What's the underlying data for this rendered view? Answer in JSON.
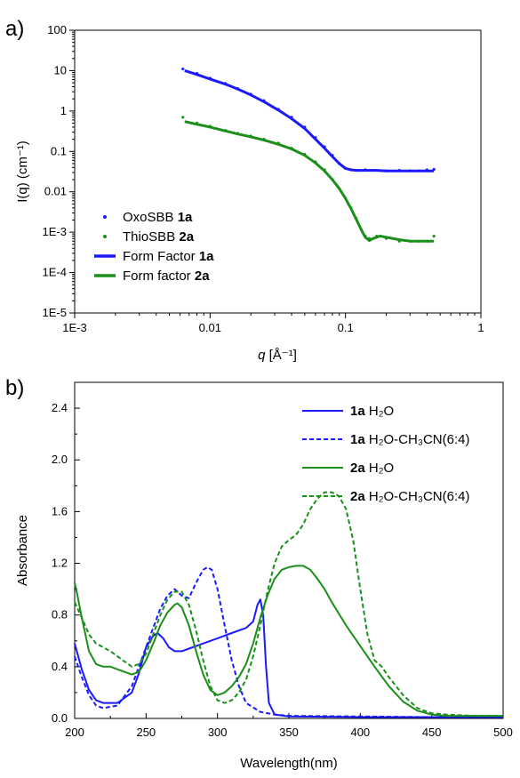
{
  "chart_data": [
    {
      "panel_label": "a)",
      "type": "scatter",
      "x_scale": "log",
      "y_scale": "log",
      "xlim": [
        0.001,
        1
      ],
      "ylim": [
        1e-05,
        100
      ],
      "xlabel_italic": "q",
      "xlabel_rest": " [Å⁻¹]",
      "ylabel": "I(q) (cm⁻¹)",
      "x_ticks": [
        0.001,
        0.01,
        0.1,
        1
      ],
      "x_tick_labels": [
        "1E-3",
        "0.01",
        "0.1",
        "1"
      ],
      "y_ticks": [
        1e-05,
        0.0001,
        0.001,
        0.01,
        0.1,
        1,
        10,
        100
      ],
      "y_tick_labels": [
        "1E-5",
        "1E-4",
        "1E-3",
        "0.01",
        "0.1",
        "1",
        "10",
        "100"
      ],
      "legend_position": "bottom-left",
      "series": [
        {
          "name": "OxoSBB ",
          "name_bold": "1a",
          "kind": "points",
          "color": "#1a1aff",
          "x": [
            0.0063,
            0.008,
            0.01,
            0.013,
            0.016,
            0.02,
            0.025,
            0.032,
            0.04,
            0.05,
            0.06,
            0.07,
            0.08,
            0.09,
            0.1,
            0.11,
            0.12,
            0.14,
            0.17,
            0.2,
            0.25,
            0.3,
            0.35,
            0.4,
            0.45
          ],
          "y": [
            11,
            8.5,
            6.5,
            4.8,
            3.6,
            2.6,
            1.8,
            1.1,
            0.7,
            0.4,
            0.22,
            0.13,
            0.08,
            0.05,
            0.038,
            0.035,
            0.034,
            0.035,
            0.034,
            0.033,
            0.034,
            0.033,
            0.033,
            0.035,
            0.036
          ]
        },
        {
          "name": "ThioSBB ",
          "name_bold": "2a",
          "kind": "points",
          "color": "#1a8f1a",
          "x": [
            0.0063,
            0.008,
            0.01,
            0.013,
            0.016,
            0.02,
            0.025,
            0.032,
            0.04,
            0.05,
            0.06,
            0.07,
            0.08,
            0.09,
            0.1,
            0.11,
            0.12,
            0.13,
            0.14,
            0.15,
            0.17,
            0.2,
            0.25,
            0.3,
            0.35,
            0.4,
            0.45
          ],
          "y": [
            0.7,
            0.5,
            0.42,
            0.33,
            0.28,
            0.24,
            0.2,
            0.16,
            0.12,
            0.085,
            0.055,
            0.035,
            0.02,
            0.012,
            0.007,
            0.004,
            0.0022,
            0.0012,
            0.0008,
            0.0007,
            0.0008,
            0.0007,
            0.0006,
            0.0006,
            0.0006,
            0.0006,
            0.0008
          ]
        },
        {
          "name": "Form Factor ",
          "name_bold": "1a",
          "kind": "line",
          "color": "#1a1aff",
          "x": [
            0.0065,
            0.008,
            0.01,
            0.013,
            0.016,
            0.02,
            0.025,
            0.032,
            0.04,
            0.05,
            0.06,
            0.07,
            0.08,
            0.09,
            0.1,
            0.11,
            0.12,
            0.14,
            0.17,
            0.2,
            0.25,
            0.3,
            0.35,
            0.4,
            0.45
          ],
          "y": [
            10,
            8,
            6.2,
            4.6,
            3.5,
            2.5,
            1.7,
            1.05,
            0.65,
            0.37,
            0.2,
            0.12,
            0.075,
            0.05,
            0.038,
            0.035,
            0.034,
            0.034,
            0.034,
            0.033,
            0.033,
            0.033,
            0.033,
            0.033,
            0.033
          ]
        },
        {
          "name": "Form factor ",
          "name_bold": "2a",
          "kind": "line",
          "color": "#1a8f1a",
          "x": [
            0.0065,
            0.008,
            0.01,
            0.013,
            0.016,
            0.02,
            0.025,
            0.032,
            0.04,
            0.05,
            0.06,
            0.07,
            0.08,
            0.09,
            0.1,
            0.11,
            0.12,
            0.13,
            0.14,
            0.15,
            0.16,
            0.18,
            0.2,
            0.25,
            0.3,
            0.35,
            0.4,
            0.45
          ],
          "y": [
            0.55,
            0.47,
            0.4,
            0.32,
            0.27,
            0.23,
            0.19,
            0.15,
            0.115,
            0.08,
            0.052,
            0.033,
            0.02,
            0.012,
            0.0068,
            0.0038,
            0.0021,
            0.0012,
            0.00075,
            0.00062,
            0.0007,
            0.0008,
            0.00075,
            0.00065,
            0.0006,
            0.0006,
            0.0006,
            0.0006
          ]
        }
      ]
    },
    {
      "panel_label": "b)",
      "type": "line",
      "xlim": [
        200,
        500
      ],
      "ylim": [
        0,
        2.6
      ],
      "xlabel": "Wavelength(nm)",
      "ylabel": "Absorbance",
      "x_ticks": [
        200,
        250,
        300,
        350,
        400,
        450,
        500
      ],
      "x_tick_labels": [
        "200",
        "250",
        "300",
        "350",
        "400",
        "450",
        "500"
      ],
      "y_ticks": [
        0,
        0.4,
        0.8,
        1.2,
        1.6,
        2.0,
        2.4
      ],
      "y_tick_labels": [
        "0.0",
        "0.4",
        "0.8",
        "1.2",
        "1.6",
        "2.0",
        "2.4"
      ],
      "legend_position": "top-right",
      "series": [
        {
          "name_bold": "1a",
          "name": " H₂O",
          "dash": "solid",
          "color": "#1a1aff",
          "x": [
            200,
            205,
            210,
            215,
            220,
            230,
            240,
            245,
            250,
            255,
            258,
            262,
            266,
            270,
            275,
            280,
            290,
            300,
            310,
            320,
            325,
            328,
            330,
            332,
            334,
            336,
            340,
            350,
            400,
            450,
            500
          ],
          "y": [
            0.58,
            0.38,
            0.22,
            0.14,
            0.12,
            0.12,
            0.2,
            0.35,
            0.55,
            0.64,
            0.66,
            0.62,
            0.55,
            0.52,
            0.52,
            0.54,
            0.58,
            0.62,
            0.66,
            0.7,
            0.75,
            0.88,
            0.92,
            0.8,
            0.4,
            0.12,
            0.03,
            0.015,
            0.01,
            0.01,
            0.01
          ]
        },
        {
          "name_bold": "1a",
          "name": " H₂O-CH₃CN(6:4)",
          "dash": "dashed",
          "color": "#1a1aff",
          "x": [
            200,
            205,
            210,
            215,
            220,
            230,
            240,
            250,
            260,
            265,
            270,
            275,
            280,
            285,
            290,
            293,
            296,
            300,
            305,
            310,
            315,
            320,
            330,
            340,
            350,
            400,
            450,
            500
          ],
          "y": [
            0.48,
            0.32,
            0.18,
            0.1,
            0.08,
            0.1,
            0.25,
            0.55,
            0.85,
            0.95,
            1.0,
            0.95,
            0.93,
            1.05,
            1.15,
            1.17,
            1.15,
            1.0,
            0.72,
            0.45,
            0.25,
            0.12,
            0.05,
            0.03,
            0.02,
            0.015,
            0.01,
            0.01
          ]
        },
        {
          "name_bold": "2a",
          "name": " H₂O",
          "dash": "solid",
          "color": "#1a8f1a",
          "x": [
            200,
            202,
            205,
            210,
            215,
            220,
            225,
            230,
            235,
            240,
            245,
            250,
            255,
            260,
            265,
            270,
            272,
            275,
            280,
            285,
            290,
            295,
            300,
            305,
            310,
            315,
            320,
            325,
            330,
            335,
            340,
            345,
            350,
            355,
            360,
            365,
            370,
            375,
            380,
            390,
            400,
            410,
            420,
            430,
            440,
            450,
            460,
            480,
            500
          ],
          "y": [
            1.05,
            0.95,
            0.78,
            0.52,
            0.42,
            0.4,
            0.4,
            0.38,
            0.36,
            0.34,
            0.36,
            0.45,
            0.58,
            0.72,
            0.82,
            0.88,
            0.89,
            0.86,
            0.72,
            0.52,
            0.34,
            0.22,
            0.18,
            0.2,
            0.25,
            0.32,
            0.42,
            0.58,
            0.78,
            0.95,
            1.08,
            1.15,
            1.17,
            1.18,
            1.18,
            1.15,
            1.08,
            1.0,
            0.9,
            0.72,
            0.56,
            0.4,
            0.25,
            0.13,
            0.06,
            0.03,
            0.02,
            0.02,
            0.02
          ]
        },
        {
          "name_bold": "2a",
          "name": " H₂O-CH₃CN(6:4)",
          "dash": "dashed",
          "color": "#1a8f1a",
          "x": [
            200,
            205,
            210,
            215,
            220,
            225,
            230,
            235,
            240,
            245,
            250,
            255,
            260,
            265,
            270,
            275,
            280,
            285,
            290,
            295,
            300,
            305,
            310,
            315,
            320,
            325,
            330,
            335,
            340,
            345,
            350,
            355,
            360,
            365,
            370,
            375,
            380,
            385,
            390,
            395,
            400,
            405,
            410,
            415,
            420,
            430,
            440,
            450,
            460,
            480,
            500
          ],
          "y": [
            0.9,
            0.78,
            0.65,
            0.58,
            0.55,
            0.52,
            0.48,
            0.44,
            0.4,
            0.42,
            0.5,
            0.65,
            0.8,
            0.92,
            0.98,
            0.98,
            0.88,
            0.68,
            0.45,
            0.25,
            0.14,
            0.12,
            0.14,
            0.2,
            0.3,
            0.48,
            0.72,
            0.98,
            1.2,
            1.33,
            1.38,
            1.42,
            1.5,
            1.62,
            1.7,
            1.75,
            1.75,
            1.72,
            1.62,
            1.38,
            1.0,
            0.65,
            0.45,
            0.4,
            0.32,
            0.18,
            0.08,
            0.04,
            0.03,
            0.02,
            0.02
          ]
        }
      ]
    }
  ]
}
